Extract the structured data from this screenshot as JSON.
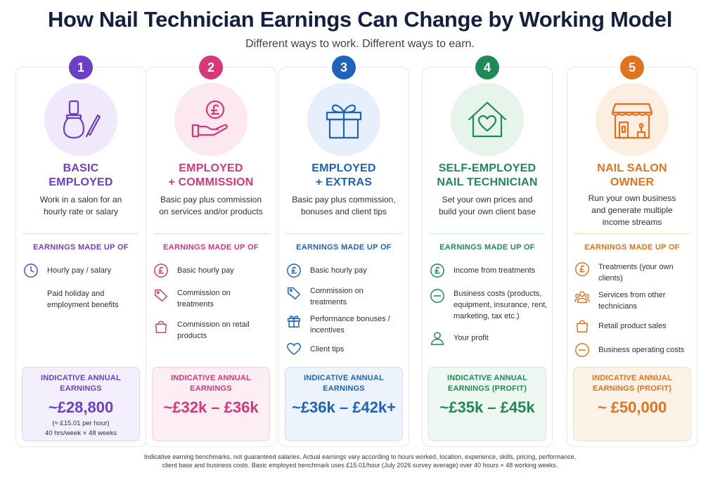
{
  "title": "How Nail Technician Earnings Can Change by Working Model",
  "subtitle": "Different ways to work. Different ways to earn.",
  "cards": [
    {
      "number": "1",
      "heading": [
        "BASIC",
        "EMPLOYED"
      ],
      "desc": [
        "Work in a salon for an",
        "hourly rate or salary"
      ],
      "made_up_label": "EARNINGS MADE UP OF",
      "items": [
        "Hourly pay / salary",
        "Paid holiday and employment benefits"
      ],
      "earn_label": [
        "INDICATIVE ANNUAL",
        "EARNINGS"
      ],
      "earn_value": "~£28,800",
      "earn_notes": [
        "(≈ £15.01 per hour)",
        "40 hrs/week × 48 weeks"
      ],
      "colors": {
        "accent": "#6b3fc6",
        "soft": "#efe9fb",
        "box": "#f3effc",
        "border": "#ddd2f5"
      }
    },
    {
      "number": "2",
      "heading": [
        "EMPLOYED",
        "+ COMMISSION"
      ],
      "desc": [
        "Basic pay plus commission",
        "on services and/or products"
      ],
      "made_up_label": "EARNINGS MADE UP OF",
      "items": [
        "Basic hourly pay",
        "Commission on treatments",
        "Commission on retail products"
      ],
      "earn_label": [
        "INDICATIVE ANNUAL",
        "EARNINGS"
      ],
      "earn_value": "~£32k – £36k",
      "colors": {
        "accent": "#d6387a",
        "soft": "#fde8f0",
        "box": "#fdeef3",
        "border": "#f6cfdd"
      }
    },
    {
      "number": "3",
      "heading": [
        "EMPLOYED",
        "+ EXTRAS"
      ],
      "desc": [
        "Basic pay plus commission,",
        "bonuses and client tips"
      ],
      "made_up_label": "EARNINGS MADE UP OF",
      "items": [
        "Basic hourly pay",
        "Commission on treatments",
        "Performance bonuses / incentives",
        "Client tips"
      ],
      "earn_label": [
        "INDICATIVE ANNUAL",
        "EARNINGS"
      ],
      "earn_value": "~£36k – £42k+",
      "colors": {
        "accent": "#1f63b8",
        "soft": "#e6effb",
        "box": "#edf3fc",
        "border": "#cfdff5"
      }
    },
    {
      "number": "4",
      "heading": [
        "SELF-EMPLOYED",
        "NAIL TECHNICIAN"
      ],
      "desc": [
        "Set your own prices and",
        "build your own client base"
      ],
      "made_up_label": "EARNINGS MADE UP OF",
      "items": [
        "Income from treatments",
        "Business costs (products, equipment, insurance, rent, marketing, tax etc.)",
        "Your profit"
      ],
      "earn_label": [
        "INDICATIVE ANNUAL",
        "EARNINGS (PROFIT)"
      ],
      "earn_value": "~£35k – £45k",
      "colors": {
        "accent": "#1f8a55",
        "soft": "#e6f4ec",
        "box": "#eef7f1",
        "border": "#cfe8d9"
      }
    },
    {
      "number": "5",
      "heading": [
        "NAIL SALON",
        "OWNER"
      ],
      "desc": [
        "Run your own business",
        "and generate multiple",
        "income streams"
      ],
      "made_up_label": "EARNINGS MADE UP OF",
      "items": [
        "Treatments (your own clients)",
        "Services from other technicians",
        "Retail product sales",
        "Business operating costs"
      ],
      "earn_label": [
        "INDICATIVE ANNUAL",
        "EARNINGS (PROFIT)"
      ],
      "earn_value": "~ £50,000",
      "colors": {
        "accent": "#e0731e",
        "soft": "#fdeee2",
        "box": "#fdf2e8",
        "border": "#f6dcc5"
      }
    }
  ],
  "footnote": [
    "Indicative earning benchmarks, not guaranteed salaries. Actual earnings vary according to hours worked, location, experience, skills, pricing, performance,",
    "client base and business costs. Basic employed benchmark uses £15.01/hour (July 2026 survey average) over 40 hours × 48 working weeks."
  ]
}
